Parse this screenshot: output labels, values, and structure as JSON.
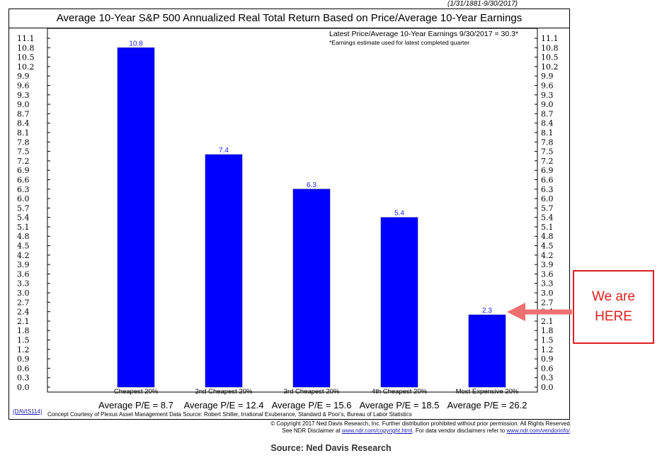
{
  "header": {
    "date_range": "(1/31/1881-9/30/2017)",
    "title": "Average 10-Year S&P 500 Annualized Real Total Return Based on Price/Average 10-Year Earnings"
  },
  "notes": {
    "latest": "Latest Price/Average 10-Year Earnings 9/30/2017 = 30.3*",
    "estimate": "*Earnings estimate used for latest completed quarter"
  },
  "footer": {
    "code": "(DAVIS114)",
    "credit": "Concept Courtesy of Plexus Asset Management Data Source: Robert Shiller, Irrational Exuberance, Standard & Poor's, Bureau of Labor Statistics",
    "copyright": "© Copyright 2017 Ned Davis Research, Inc.  Further distribution prohibited without prior permission.  All Rights Reserved.",
    "disclaimer_prefix": "See NDR Disclaimer at ",
    "disclaimer_link1": "www.ndr.com/copyright.html",
    "disclaimer_middle": ". For data vendor disclaimers refer to ",
    "disclaimer_link2": "www.ndr.com/vendorinfo/",
    "disclaimer_suffix": "."
  },
  "callout": {
    "line1": "We are",
    "line2": "HERE"
  },
  "source": "Source: Ned Davis Research",
  "colors": {
    "bar": "#0000ff",
    "value_label": "#1a1aff",
    "callout": "#e02020"
  },
  "chart_data": {
    "type": "bar",
    "categories": [
      "Cheapest 20%",
      "2nd Cheapest 20%",
      "3rd Cheapest 20%",
      "4th Cheapest 20%",
      "Most Expensive 20%"
    ],
    "sublabels": [
      "Average P/E = 8.7",
      "Average P/E = 12.4",
      "Average P/E = 15.6",
      "Average P/E = 18.5",
      "Average P/E = 26.2"
    ],
    "values": [
      10.8,
      7.4,
      6.3,
      5.4,
      2.3
    ],
    "value_labels": [
      "10.8",
      "7.4",
      "6.3",
      "5.4",
      "2.3"
    ],
    "ylim": [
      0,
      11.1
    ],
    "yticks": [
      "0.0",
      "0.3",
      "0.6",
      "0.9",
      "1.2",
      "1.5",
      "1.8",
      "2.1",
      "2.4",
      "2.7",
      "3.0",
      "3.3",
      "3.6",
      "3.9",
      "4.2",
      "4.5",
      "4.8",
      "5.1",
      "5.4",
      "5.7",
      "6.0",
      "6.3",
      "6.6",
      "6.9",
      "7.2",
      "7.5",
      "7.8",
      "8.1",
      "8.4",
      "8.7",
      "9.0",
      "9.3",
      "9.6",
      "9.9",
      "10.2",
      "10.5",
      "10.8",
      "11.1"
    ],
    "highlight_index": 4,
    "grid": false,
    "legend": "none"
  }
}
